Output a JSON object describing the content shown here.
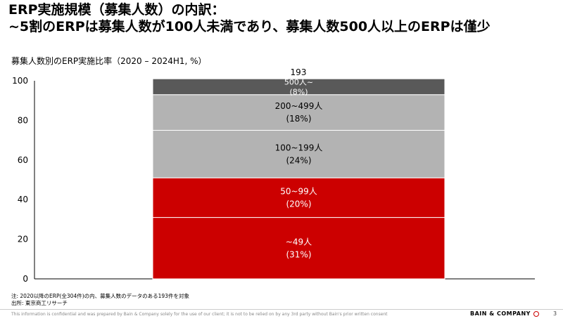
{
  "header": {
    "title_line1": "ERP実施規模（募集人数）の内訳：",
    "title_line2": "~5割のERPは募集人数が100人未満であり、募集人数500人以上のERPは僅少"
  },
  "chart_data": {
    "type": "bar",
    "stacked": true,
    "title": "募集人数別のERP実施比率（2020 – 2024H1, %）",
    "total_label": "193",
    "yticks": [
      "0",
      "20",
      "40",
      "60",
      "80",
      "100"
    ],
    "ylim": [
      0,
      100
    ],
    "grid": false,
    "series": [
      {
        "name": "~49人",
        "value": 31,
        "pct_label": "(31%)",
        "color": "#cc0000"
      },
      {
        "name": "50~99人",
        "value": 20,
        "pct_label": "(20%)",
        "color": "#cc0000"
      },
      {
        "name": "100~199人",
        "value": 24,
        "pct_label": "(24%)",
        "color": "#b3b3b3"
      },
      {
        "name": "200~499人",
        "value": 18,
        "pct_label": "(18%)",
        "color": "#b3b3b3"
      },
      {
        "name": "500人~",
        "value": 8,
        "pct_label": "(8%)",
        "color": "#595959"
      }
    ]
  },
  "notes": {
    "note": "注: 2020以降のERP(全304件)の内、募集人数のデータのある193件を対象",
    "source": "出所: 東京商工リサーチ"
  },
  "footer": {
    "disclaimer": "This information is confidential and was prepared by Bain & Company solely for the use of our client; it is not to be relied on by any 3rd party without Bain's prior written consent",
    "brand": "BAIN & COMPANY",
    "page": "3"
  }
}
